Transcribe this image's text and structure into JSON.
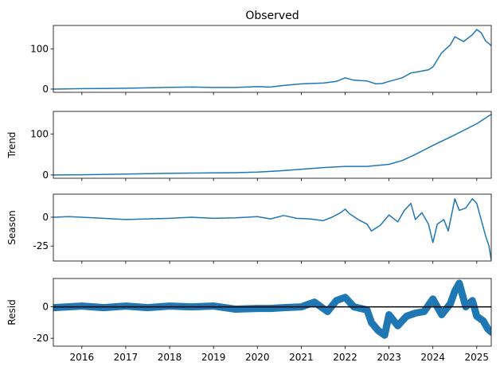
{
  "chart_data": {
    "type": "line",
    "title": "Observed",
    "x_ticks": [
      "2016",
      "2017",
      "2018",
      "2019",
      "2020",
      "2021",
      "2022",
      "2023",
      "2024",
      "2025"
    ],
    "x_range": [
      2015.35,
      2025.33
    ],
    "color": "#1f77b4",
    "panels": [
      {
        "name": "observed",
        "title": "Observed",
        "ylabel": "",
        "ylim": [
          -8,
          158
        ],
        "yticks": [
          0,
          100
        ],
        "style": "line",
        "points": [
          [
            2015.35,
            0
          ],
          [
            2016.0,
            1
          ],
          [
            2016.5,
            1.5
          ],
          [
            2017.0,
            2
          ],
          [
            2017.5,
            3
          ],
          [
            2018.0,
            4.5
          ],
          [
            2018.5,
            5
          ],
          [
            2019.0,
            4
          ],
          [
            2019.5,
            4
          ],
          [
            2020.0,
            6
          ],
          [
            2020.3,
            5
          ],
          [
            2020.6,
            9
          ],
          [
            2021.0,
            13
          ],
          [
            2021.5,
            15
          ],
          [
            2021.8,
            19
          ],
          [
            2022.0,
            28
          ],
          [
            2022.2,
            22
          ],
          [
            2022.5,
            20
          ],
          [
            2022.7,
            13
          ],
          [
            2022.85,
            14
          ],
          [
            2023.0,
            19
          ],
          [
            2023.3,
            28
          ],
          [
            2023.5,
            40
          ],
          [
            2023.7,
            44
          ],
          [
            2023.9,
            48
          ],
          [
            2024.0,
            55
          ],
          [
            2024.2,
            90
          ],
          [
            2024.4,
            110
          ],
          [
            2024.5,
            130
          ],
          [
            2024.7,
            118
          ],
          [
            2024.9,
            135
          ],
          [
            2025.0,
            148
          ],
          [
            2025.1,
            140
          ],
          [
            2025.2,
            120
          ],
          [
            2025.33,
            108
          ]
        ]
      },
      {
        "name": "trend",
        "title": "",
        "ylabel": "Trend",
        "ylim": [
          -8,
          155
        ],
        "yticks": [
          0,
          100
        ],
        "style": "line",
        "points": [
          [
            2015.35,
            0
          ],
          [
            2016.0,
            0.5
          ],
          [
            2017.0,
            2
          ],
          [
            2018.0,
            4
          ],
          [
            2019.0,
            5
          ],
          [
            2019.5,
            5.5
          ],
          [
            2020.0,
            7
          ],
          [
            2020.5,
            10
          ],
          [
            2021.0,
            14
          ],
          [
            2021.5,
            18
          ],
          [
            2022.0,
            21
          ],
          [
            2022.5,
            21
          ],
          [
            2023.0,
            26
          ],
          [
            2023.3,
            35
          ],
          [
            2023.6,
            50
          ],
          [
            2024.0,
            72
          ],
          [
            2024.5,
            98
          ],
          [
            2025.0,
            125
          ],
          [
            2025.33,
            148
          ]
        ]
      },
      {
        "name": "season",
        "title": "",
        "ylabel": "Season",
        "ylim": [
          -38,
          20
        ],
        "yticks": [
          0,
          -25
        ],
        "style": "line",
        "points": [
          [
            2015.35,
            0
          ],
          [
            2015.7,
            0.5
          ],
          [
            2016.0,
            0
          ],
          [
            2016.5,
            -1
          ],
          [
            2017.0,
            -2
          ],
          [
            2017.5,
            -1.5
          ],
          [
            2018.0,
            -1
          ],
          [
            2018.5,
            0
          ],
          [
            2019.0,
            -1
          ],
          [
            2019.5,
            -0.5
          ],
          [
            2020.0,
            0.5
          ],
          [
            2020.3,
            -1.5
          ],
          [
            2020.6,
            1.5
          ],
          [
            2020.9,
            -1
          ],
          [
            2021.2,
            -1.5
          ],
          [
            2021.5,
            -3
          ],
          [
            2021.7,
            0
          ],
          [
            2021.9,
            4
          ],
          [
            2022.0,
            7
          ],
          [
            2022.1,
            3
          ],
          [
            2022.3,
            -2
          ],
          [
            2022.5,
            -6
          ],
          [
            2022.6,
            -12
          ],
          [
            2022.8,
            -7
          ],
          [
            2023.0,
            2
          ],
          [
            2023.2,
            -4
          ],
          [
            2023.35,
            6
          ],
          [
            2023.5,
            12
          ],
          [
            2023.6,
            -2
          ],
          [
            2023.75,
            4
          ],
          [
            2023.9,
            -6
          ],
          [
            2024.0,
            -22
          ],
          [
            2024.1,
            -6
          ],
          [
            2024.25,
            -2
          ],
          [
            2024.35,
            -12
          ],
          [
            2024.5,
            16
          ],
          [
            2024.6,
            6
          ],
          [
            2024.75,
            8
          ],
          [
            2024.9,
            16
          ],
          [
            2025.0,
            12
          ],
          [
            2025.1,
            -2
          ],
          [
            2025.2,
            -16
          ],
          [
            2025.28,
            -25
          ],
          [
            2025.33,
            -37
          ]
        ]
      },
      {
        "name": "resid",
        "title": "",
        "ylabel": "Resid",
        "ylim": [
          -25,
          18
        ],
        "yticks": [
          0,
          -20
        ],
        "style": "scatter-band",
        "points": [
          [
            2015.35,
            -0.5
          ],
          [
            2016.0,
            0.5
          ],
          [
            2016.5,
            -0.5
          ],
          [
            2017.0,
            0.5
          ],
          [
            2017.5,
            -0.5
          ],
          [
            2018.0,
            0.5
          ],
          [
            2018.5,
            0
          ],
          [
            2019.0,
            0.5
          ],
          [
            2019.5,
            -1.5
          ],
          [
            2020.0,
            -1
          ],
          [
            2020.3,
            -1
          ],
          [
            2020.6,
            -0.5
          ],
          [
            2021.0,
            0
          ],
          [
            2021.3,
            3
          ],
          [
            2021.6,
            -3
          ],
          [
            2021.8,
            4
          ],
          [
            2022.0,
            6
          ],
          [
            2022.2,
            0
          ],
          [
            2022.5,
            -2
          ],
          [
            2022.6,
            -10
          ],
          [
            2022.75,
            -15
          ],
          [
            2022.9,
            -18
          ],
          [
            2023.0,
            -5
          ],
          [
            2023.2,
            -12
          ],
          [
            2023.4,
            -6
          ],
          [
            2023.6,
            -4
          ],
          [
            2023.8,
            -3
          ],
          [
            2024.0,
            5
          ],
          [
            2024.2,
            -5
          ],
          [
            2024.4,
            2
          ],
          [
            2024.5,
            10
          ],
          [
            2024.6,
            15
          ],
          [
            2024.75,
            0
          ],
          [
            2024.9,
            4
          ],
          [
            2025.0,
            -6
          ],
          [
            2025.15,
            -9
          ],
          [
            2025.25,
            -14
          ],
          [
            2025.33,
            -16
          ]
        ]
      }
    ]
  }
}
